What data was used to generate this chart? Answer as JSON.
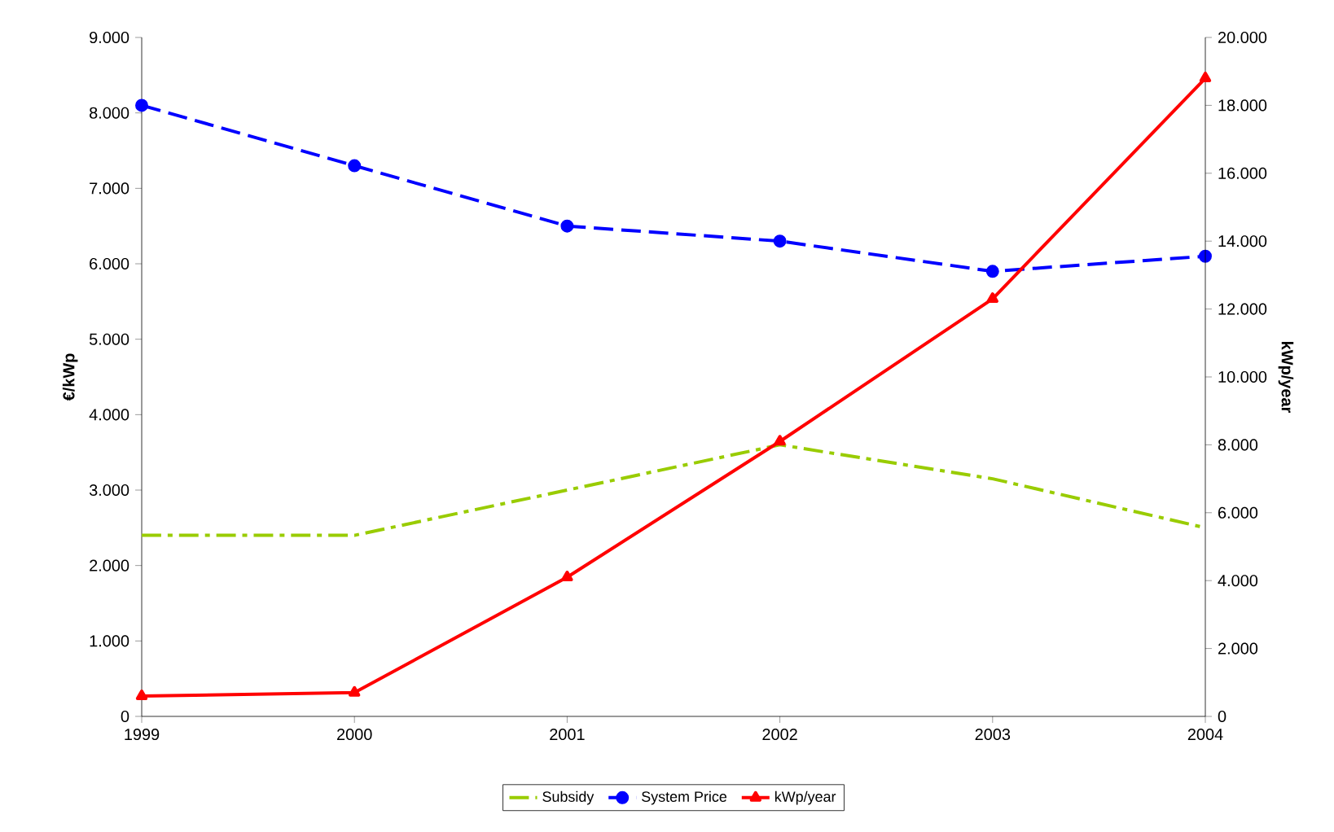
{
  "chart_data": {
    "type": "line",
    "ylabel": "€/kWp",
    "y2label": "kWp/year",
    "x": [
      1999,
      2000,
      2001,
      2002,
      2003,
      2004
    ],
    "xlim": [
      1999,
      2004
    ],
    "xticks": [
      1999,
      2000,
      2001,
      2002,
      2003,
      2004
    ],
    "ylim": [
      0,
      9000
    ],
    "yticks": [
      {
        "value": 0,
        "label": "0"
      },
      {
        "value": 1000,
        "label": "1.000"
      },
      {
        "value": 2000,
        "label": "2.000"
      },
      {
        "value": 3000,
        "label": "3.000"
      },
      {
        "value": 4000,
        "label": "4.000"
      },
      {
        "value": 5000,
        "label": "5.000"
      },
      {
        "value": 6000,
        "label": "6.000"
      },
      {
        "value": 7000,
        "label": "7.000"
      },
      {
        "value": 8000,
        "label": "8.000"
      },
      {
        "value": 9000,
        "label": "9.000"
      }
    ],
    "y2lim": [
      0,
      20000
    ],
    "y2ticks": [
      {
        "value": 0,
        "label": "0"
      },
      {
        "value": 2000,
        "label": "2.000"
      },
      {
        "value": 4000,
        "label": "4.000"
      },
      {
        "value": 6000,
        "label": "6.000"
      },
      {
        "value": 8000,
        "label": "8.000"
      },
      {
        "value": 10000,
        "label": "10.000"
      },
      {
        "value": 12000,
        "label": "12.000"
      },
      {
        "value": 14000,
        "label": "14.000"
      },
      {
        "value": 16000,
        "label": "16.000"
      },
      {
        "value": 18000,
        "label": "18.000"
      },
      {
        "value": 20000,
        "label": "20.000"
      }
    ],
    "legend": "bottom",
    "series": [
      {
        "name": "Subsidy",
        "color": "#99cc00",
        "line_style": "dashdot",
        "marker": "none",
        "values": [
          2400,
          2400,
          3000,
          3600,
          3150,
          2500
        ]
      },
      {
        "name": "System Price",
        "color": "#0000ff",
        "line_style": "dashed",
        "marker": "circle",
        "values": [
          8100,
          7300,
          6500,
          6300,
          5900,
          6100
        ]
      },
      {
        "name": "kWp/year",
        "color": "#ff0000",
        "line_style": "solid",
        "marker": "triangle",
        "axis": "y2",
        "values": [
          600,
          700,
          4100,
          8100,
          12300,
          18800
        ]
      }
    ]
  }
}
